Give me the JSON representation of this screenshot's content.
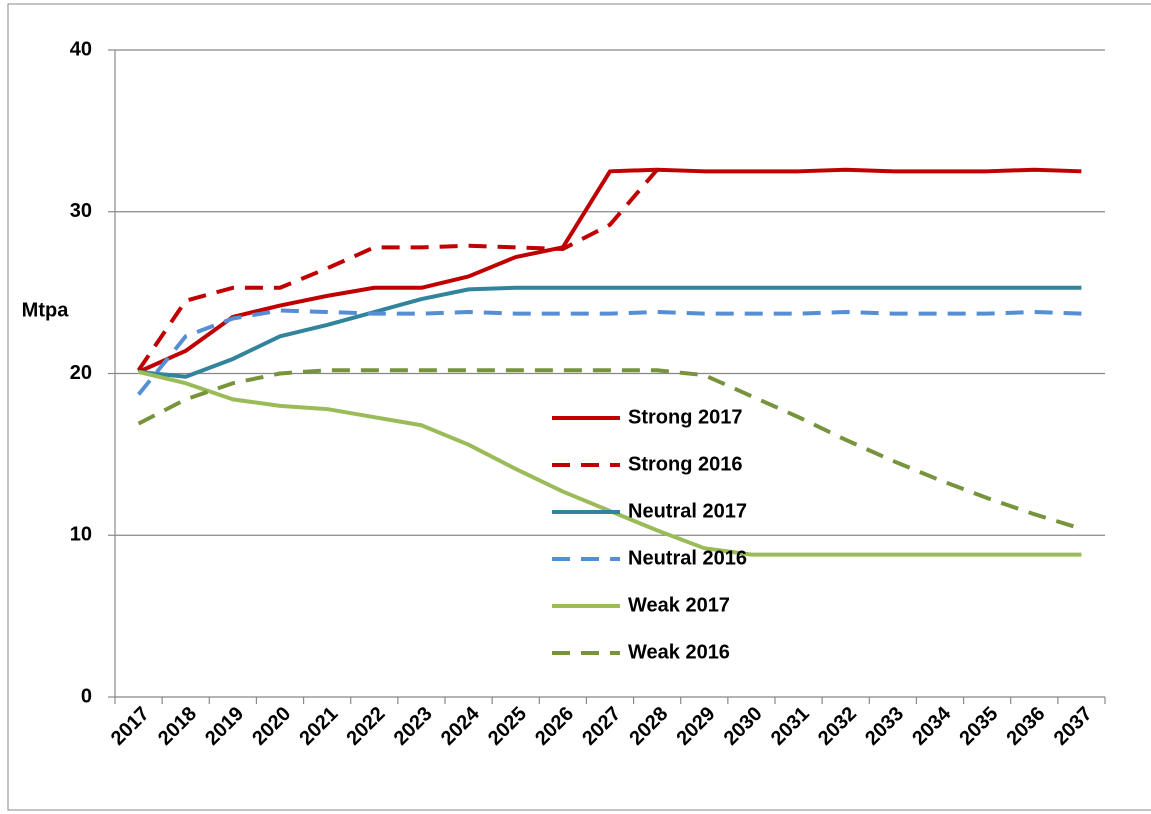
{
  "chart_data": {
    "type": "line",
    "y_label": "Mtpa",
    "categories": [
      "2017",
      "2018",
      "2019",
      "2020",
      "2021",
      "2022",
      "2023",
      "2024",
      "2025",
      "2026",
      "2027",
      "2028",
      "2029",
      "2030",
      "2031",
      "2032",
      "2033",
      "2034",
      "2035",
      "2036",
      "2037"
    ],
    "ylim": [
      0,
      40
    ],
    "yticks": [
      0,
      10,
      20,
      30,
      40
    ],
    "grid": true,
    "legend": "center",
    "series": [
      {
        "name": "Strong 2017",
        "color": "#c00000",
        "dash": false,
        "values": [
          20.1,
          21.4,
          23.5,
          24.2,
          24.8,
          25.3,
          25.3,
          26.0,
          27.2,
          27.8,
          32.5,
          32.6,
          32.5,
          32.5,
          32.5,
          32.6,
          32.5,
          32.5,
          32.5,
          32.6,
          32.5
        ]
      },
      {
        "name": "Strong 2016",
        "color": "#c00000",
        "dash": true,
        "values": [
          20.2,
          24.5,
          25.3,
          25.3,
          26.5,
          27.8,
          27.8,
          27.9,
          27.8,
          27.7,
          29.2,
          32.6,
          null,
          null,
          null,
          null,
          null,
          null,
          null,
          null,
          null
        ]
      },
      {
        "name": "Neutral 2017",
        "color": "#31849b",
        "dash": false,
        "values": [
          20.1,
          19.8,
          20.9,
          22.3,
          23.0,
          23.8,
          24.6,
          25.2,
          25.3,
          25.3,
          25.3,
          25.3,
          25.3,
          25.3,
          25.3,
          25.3,
          25.3,
          25.3,
          25.3,
          25.3,
          25.3
        ]
      },
      {
        "name": "Neutral 2016",
        "color": "#558ed5",
        "dash": true,
        "values": [
          18.7,
          22.3,
          23.4,
          23.9,
          23.8,
          23.7,
          23.7,
          23.8,
          23.7,
          23.7,
          23.7,
          23.8,
          23.7,
          23.7,
          23.7,
          23.8,
          23.7,
          23.7,
          23.7,
          23.8,
          23.7
        ]
      },
      {
        "name": "Weak 2017",
        "color": "#9bbb59",
        "dash": false,
        "values": [
          20.1,
          19.4,
          18.4,
          18.0,
          17.8,
          17.3,
          16.8,
          15.6,
          14.1,
          12.7,
          11.5,
          10.3,
          9.2,
          8.8,
          8.8,
          8.8,
          8.8,
          8.8,
          8.8,
          8.8,
          8.8
        ]
      },
      {
        "name": "Weak 2016",
        "color": "#77933c",
        "dash": true,
        "values": [
          16.9,
          18.4,
          19.4,
          20.0,
          20.2,
          20.2,
          20.2,
          20.2,
          20.2,
          20.2,
          20.2,
          20.2,
          19.9,
          18.6,
          17.3,
          15.9,
          14.6,
          13.4,
          12.3,
          11.3,
          10.4
        ]
      }
    ]
  }
}
